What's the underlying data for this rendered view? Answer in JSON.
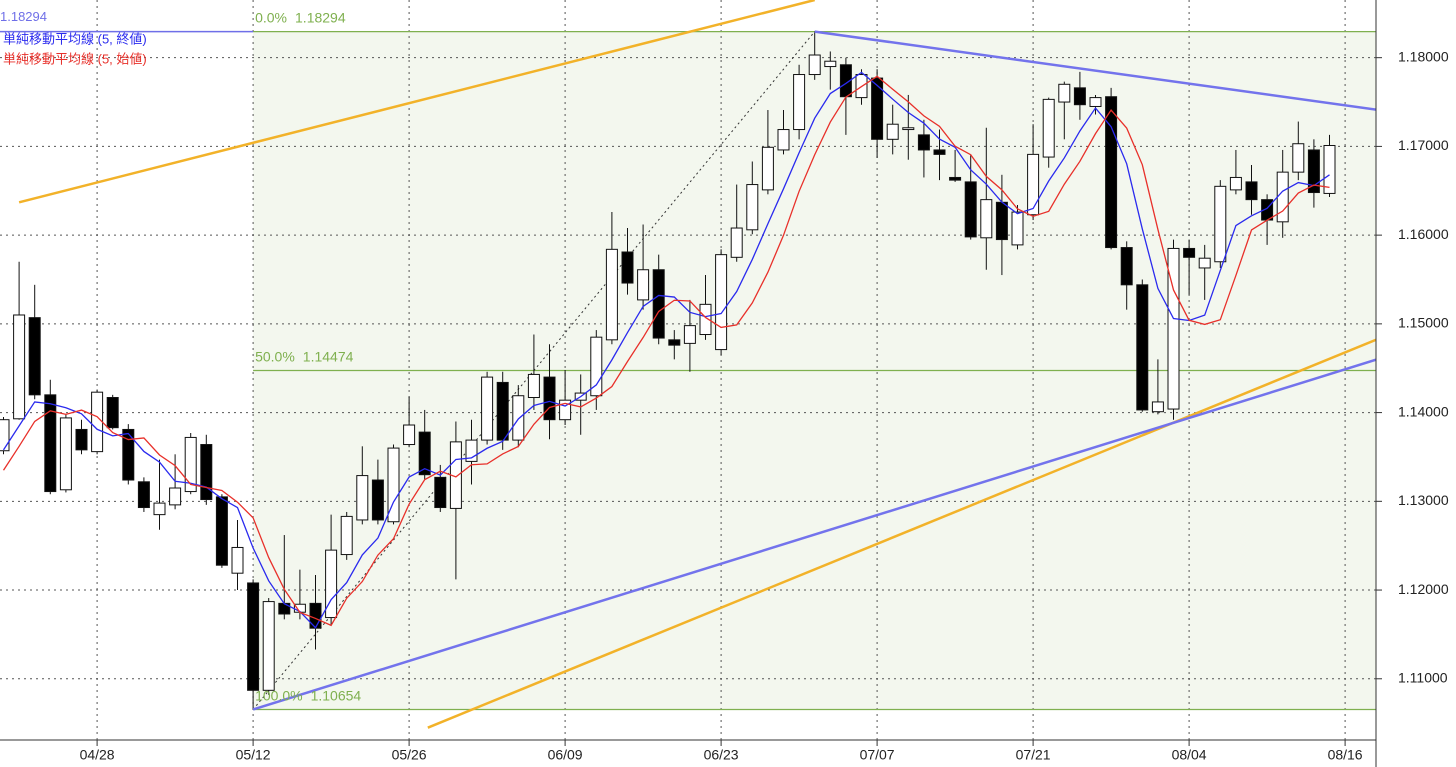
{
  "chart_data": {
    "type": "candlestick",
    "categories": [
      null,
      null,
      null,
      null,
      null,
      null,
      "04/28",
      null,
      null,
      null,
      null,
      null,
      null,
      null,
      null,
      null,
      "05/12",
      null,
      null,
      null,
      null,
      null,
      null,
      null,
      null,
      null,
      "05/26",
      null,
      null,
      null,
      null,
      null,
      null,
      null,
      null,
      null,
      "06/09",
      null,
      null,
      null,
      null,
      null,
      null,
      null,
      null,
      null,
      "06/23",
      null,
      null,
      null,
      null,
      null,
      null,
      null,
      null,
      null,
      "07/07",
      null,
      null,
      null,
      null,
      null,
      null,
      null,
      null,
      null,
      "07/21",
      null,
      null,
      null,
      null,
      null,
      null,
      null,
      null,
      null,
      "08/04",
      null,
      null,
      null,
      null,
      null,
      null,
      null,
      null,
      null,
      "08/16"
    ],
    "open": [
      1.1357,
      1.1393,
      1.1507,
      1.142,
      1.1313,
      1.1381,
      1.1356,
      1.1417,
      1.1381,
      1.1322,
      1.1285,
      1.1296,
      1.1311,
      1.1364,
      1.1305,
      1.1219,
      1.1208,
      1.1087,
      1.1185,
      1.1175,
      1.1185,
      1.1169,
      1.124,
      1.1279,
      1.1324,
      1.1277,
      1.1364,
      1.1378,
      1.1327,
      1.1292,
      1.1345,
      1.1369,
      1.1434,
      1.1369,
      1.1417,
      1.144,
      1.1392,
      1.1414,
      1.1419,
      1.1482,
      1.1581,
      1.1527,
      1.1561,
      1.1482,
      1.1478,
      1.1488,
      1.1471,
      1.1575,
      1.1606,
      1.1651,
      1.1696,
      1.1719,
      1.1781,
      1.179,
      1.1792,
      1.1755,
      1.1777,
      1.1708,
      1.1719,
      1.1713,
      1.1696,
      1.1665,
      1.166,
      1.1597,
      1.1637,
      1.1589,
      1.1623,
      1.1688,
      1.175,
      1.1766,
      1.1745,
      1.1756,
      1.1586,
      1.1544,
      1.1401,
      1.1404,
      1.1585,
      1.1563,
      1.157,
      1.1651,
      1.166,
      1.164,
      1.1615,
      1.1671,
      1.1696,
      1.1647,
      null
    ],
    "high": [
      1.1395,
      1.157,
      1.1544,
      1.1437,
      1.1398,
      1.1392,
      1.1426,
      1.142,
      1.1387,
      1.1327,
      1.1347,
      1.1353,
      1.1377,
      1.1375,
      1.1308,
      1.1279,
      1.1212,
      1.1191,
      1.1262,
      1.1223,
      1.1217,
      1.1285,
      1.1288,
      1.1362,
      1.1347,
      1.1364,
      1.1418,
      1.1403,
      1.1341,
      1.139,
      1.1392,
      1.1446,
      1.1446,
      1.1431,
      1.1488,
      1.1477,
      1.1448,
      1.1443,
      1.1493,
      1.1626,
      1.1608,
      1.1612,
      1.1578,
      1.1493,
      1.1527,
      1.1555,
      1.1584,
      1.1657,
      1.1683,
      1.1741,
      1.1741,
      1.1792,
      1.18294,
      1.1807,
      1.18,
      1.1787,
      1.1787,
      1.1747,
      1.1758,
      1.173,
      1.1719,
      1.1696,
      1.1691,
      1.1721,
      1.1668,
      1.1634,
      1.1725,
      1.1755,
      1.1773,
      1.1784,
      1.1758,
      1.1766,
      1.1593,
      1.155,
      1.146,
      1.1595,
      1.1595,
      1.1589,
      1.1662,
      1.1696,
      1.1679,
      1.1646,
      1.1696,
      1.1728,
      1.1708,
      1.1713,
      null
    ],
    "low": [
      1.1353,
      1.1392,
      1.1415,
      1.1308,
      1.131,
      1.1353,
      1.1353,
      1.1381,
      1.1319,
      1.1288,
      1.1268,
      1.1291,
      1.1308,
      1.1296,
      1.1225,
      1.12,
      1.10654,
      1.1082,
      1.1167,
      1.1167,
      1.1133,
      1.1161,
      1.1234,
      1.1274,
      1.1274,
      1.1274,
      1.1361,
      1.1324,
      1.1288,
      1.1212,
      1.1319,
      1.1364,
      1.1358,
      1.1361,
      1.1403,
      1.137,
      1.1386,
      1.1375,
      1.1403,
      1.1477,
      1.1533,
      1.1516,
      1.1477,
      1.146,
      1.1446,
      1.1482,
      1.1465,
      1.157,
      1.1601,
      1.1646,
      1.1691,
      1.1708,
      1.1775,
      1.1764,
      1.1713,
      1.1747,
      1.1687,
      1.1691,
      1.1685,
      1.1665,
      1.1662,
      1.166,
      1.1595,
      1.1561,
      1.1555,
      1.1584,
      1.1617,
      1.1676,
      1.1708,
      1.173,
      1.1736,
      1.1584,
      1.1516,
      1.1401,
      1.1398,
      1.1392,
      1.1533,
      1.1527,
      1.1563,
      1.1646,
      1.1623,
      1.1589,
      1.1597,
      1.1662,
      1.1631,
      1.1643,
      null
    ],
    "close": [
      1.1392,
      1.151,
      1.142,
      1.1311,
      1.1394,
      1.1358,
      1.1423,
      1.1383,
      1.1324,
      1.1293,
      1.1298,
      1.1315,
      1.1372,
      1.1302,
      1.1228,
      1.1248,
      1.1087,
      1.1187,
      1.1173,
      1.1184,
      1.1157,
      1.1245,
      1.1283,
      1.1329,
      1.1279,
      1.136,
      1.1386,
      1.133,
      1.1293,
      1.1367,
      1.1369,
      1.144,
      1.1369,
      1.1419,
      1.1443,
      1.1392,
      1.1414,
      1.1422,
      1.1485,
      1.1584,
      1.1546,
      1.1561,
      1.1484,
      1.1476,
      1.1498,
      1.1522,
      1.1578,
      1.1608,
      1.1657,
      1.1699,
      1.1719,
      1.1781,
      1.1803,
      1.1796,
      1.1756,
      1.1781,
      1.1708,
      1.1725,
      1.1721,
      1.1696,
      1.1691,
      1.1662,
      1.1598,
      1.164,
      1.1595,
      1.1626,
      1.1691,
      1.1753,
      1.177,
      1.1747,
      1.1755,
      1.1586,
      1.1544,
      1.1403,
      1.1412,
      1.1585,
      1.1575,
      1.1574,
      1.1655,
      1.1665,
      1.164,
      1.1617,
      1.1671,
      1.1703,
      1.1648,
      1.1701,
      null
    ],
    "up_color": "#ffffff",
    "down_color": "#000000",
    "series": [
      {
        "name": "単純移動平均線 (5, 終値)",
        "color": "#2a2aee",
        "values": [
          1.1358,
          1.1385,
          1.1412,
          1.141,
          1.14054,
          1.13986,
          1.13812,
          1.13738,
          1.13764,
          1.13562,
          1.13442,
          1.13226,
          1.13204,
          1.1316,
          1.1303,
          1.1293,
          1.12474,
          1.12104,
          1.11846,
          1.11758,
          1.11576,
          1.11892,
          1.12084,
          1.12396,
          1.12586,
          1.12992,
          1.13274,
          1.13368,
          1.13296,
          1.13472,
          1.1349,
          1.13598,
          1.13676,
          1.13928,
          1.1408,
          1.14126,
          1.14074,
          1.1418,
          1.14312,
          1.14594,
          1.14902,
          1.15196,
          1.1532,
          1.15302,
          1.1513,
          1.15082,
          1.15116,
          1.15364,
          1.15726,
          1.16128,
          1.16522,
          1.16928,
          1.17318,
          1.17596,
          1.1771,
          1.17834,
          1.17688,
          1.17532,
          1.17382,
          1.17262,
          1.17082,
          1.1699,
          1.16736,
          1.16574,
          1.16372,
          1.16242,
          1.163,
          1.1661,
          1.1687,
          1.17174,
          1.17432,
          1.17222,
          1.16804,
          1.1607,
          1.154,
          1.1506,
          1.15038,
          1.15098,
          1.15602,
          1.16108,
          1.16218,
          1.16302,
          1.16496,
          1.16592,
          1.16558,
          1.1668,
          null
        ]
      },
      {
        "name": "単純移動平均線 (5, 始値)",
        "color": "#e8302a",
        "values": [
          1.1335,
          1.1362,
          1.139,
          1.1402,
          1.1398,
          1.14028,
          1.13954,
          1.13774,
          1.13696,
          1.13714,
          1.13522,
          1.13402,
          1.1319,
          1.13156,
          1.13122,
          1.1299,
          1.12814,
          1.12366,
          1.12008,
          1.11748,
          1.1168,
          1.11602,
          1.11908,
          1.12096,
          1.12394,
          1.12578,
          1.12968,
          1.13244,
          1.1334,
          1.13276,
          1.13412,
          1.13422,
          1.13534,
          1.13618,
          1.13868,
          1.14058,
          1.14104,
          1.14064,
          1.14164,
          1.14294,
          1.14576,
          1.14846,
          1.1514,
          1.15266,
          1.15258,
          1.15072,
          1.1496,
          1.14988,
          1.15236,
          1.15582,
          1.15998,
          1.16494,
          1.16906,
          1.17274,
          1.17556,
          1.17674,
          1.1779,
          1.17644,
          1.17502,
          1.17344,
          1.17226,
          1.17002,
          1.16906,
          1.16662,
          1.1651,
          1.16296,
          1.16212,
          1.16268,
          1.16574,
          1.16832,
          1.17144,
          1.1741,
          1.17206,
          1.16794,
          1.16064,
          1.15382,
          1.1504,
          1.14994,
          1.15046,
          1.15546,
          1.16058,
          1.16168,
          1.16272,
          1.16474,
          1.16564,
          1.16538,
          null
        ]
      }
    ],
    "ylim": [
      1.1031,
      1.1865
    ],
    "yticks": [
      {
        "value": 1.11,
        "label": "1.11000"
      },
      {
        "value": 1.12,
        "label": "1.12000"
      },
      {
        "value": 1.13,
        "label": "1.13000"
      },
      {
        "value": 1.14,
        "label": "1.14000"
      },
      {
        "value": 1.15,
        "label": "1.15000"
      },
      {
        "value": 1.16,
        "label": "1.16000"
      },
      {
        "value": 1.17,
        "label": "1.17000"
      },
      {
        "value": 1.18,
        "label": "1.18000"
      }
    ],
    "grid": true,
    "price_line": {
      "value": 1.18294,
      "color": "#6f6fe8"
    },
    "fib_anchor": {
      "x": [
        16,
        52
      ],
      "y": [
        1.10654,
        1.18294
      ]
    },
    "fib_color": "#7fb04f",
    "fib_levels": [
      {
        "name": "0.0%",
        "value": 1.18294
      },
      {
        "name": "50.0%",
        "value": 1.14474
      },
      {
        "name": "100.0%",
        "value": 1.10654
      }
    ],
    "trend_lines": [
      {
        "color": "#f2b229",
        "x": [
          1,
          52
        ],
        "y": [
          1.1637,
          1.1865
        ]
      },
      {
        "color": "#f2b229",
        "x": [
          27.2,
          88
        ],
        "y": [
          1.10449,
          1.14822
        ]
      },
      {
        "color": "#7373ec",
        "x": [
          16,
          88
        ],
        "y": [
          1.10654,
          1.14597
        ]
      },
      {
        "color": "#7373ec",
        "x": [
          52,
          88
        ],
        "y": [
          1.18294,
          1.17414
        ]
      }
    ]
  }
}
